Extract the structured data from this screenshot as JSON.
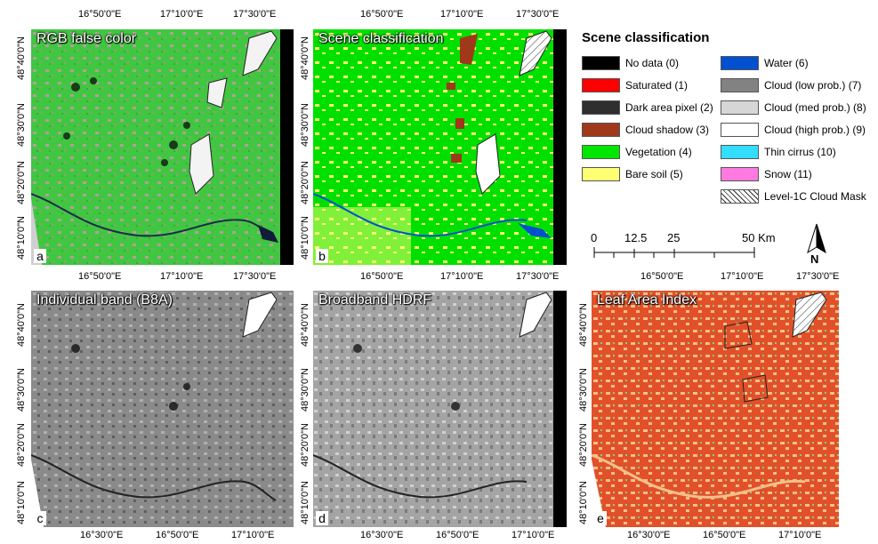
{
  "panels": [
    {
      "id": "a",
      "title": "RGB false color",
      "letter": "a"
    },
    {
      "id": "b",
      "title": "Scene classification",
      "letter": "b"
    },
    {
      "id": "c",
      "title": "Individual band (B8A)",
      "letter": "c"
    },
    {
      "id": "d",
      "title": "Broadband HDRF",
      "letter": "d"
    },
    {
      "id": "e",
      "title": "Leaf Area Index",
      "letter": "e"
    }
  ],
  "ticks": {
    "top_row_top": [
      "16°50'0\"E",
      "17°10'0\"E",
      "17°30'0\"E"
    ],
    "bottom_row_top": [
      "16°50'0\"E",
      "17°10'0\"E",
      "17°30'0\"E"
    ],
    "bottom_row_bottom": [
      "16°30'0\"E",
      "16°50'0\"E",
      "17°10'0\"E"
    ],
    "lat": [
      "48°40'0\"N",
      "48°30'0\"N",
      "48°20'0\"N",
      "48°10'0\"N"
    ]
  },
  "legend": {
    "title": "Scene classification",
    "items": [
      {
        "label": "No data (0)",
        "color": "#000000"
      },
      {
        "label": "Saturated (1)",
        "color": "#ff0000"
      },
      {
        "label": "Dark area pixel (2)",
        "color": "#2f2f2f"
      },
      {
        "label": "Cloud shadow (3)",
        "color": "#a0381a"
      },
      {
        "label": "Vegetation (4)",
        "color": "#00e600"
      },
      {
        "label": "Bare soil (5)",
        "color": "#ffff73"
      },
      {
        "label": "Water (6)",
        "color": "#0050d0"
      },
      {
        "label": "Cloud (low prob.) (7)",
        "color": "#828282"
      },
      {
        "label": "Cloud (med prob.) (8)",
        "color": "#d6d6d6"
      },
      {
        "label": "Cloud (high prob.) (9)",
        "color": "#ffffff"
      },
      {
        "label": "Thin cirrus (10)",
        "color": "#33ddff"
      },
      {
        "label": "Snow (11)",
        "color": "#ff7ae0"
      },
      {
        "label": "Level-1C Cloud Mask",
        "color": "hatch"
      }
    ]
  },
  "scalebar": {
    "labels": [
      "0",
      "12.5",
      "25",
      "50 Km"
    ]
  },
  "north": {
    "label": "N"
  }
}
